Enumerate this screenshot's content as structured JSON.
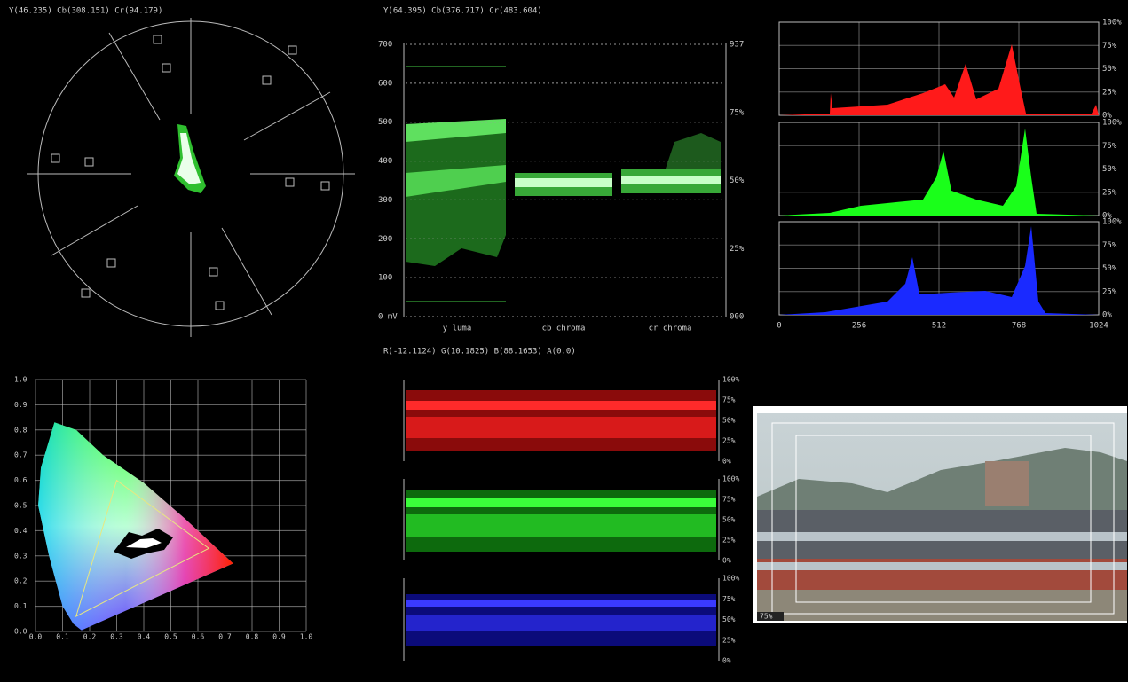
{
  "vectorscope": {
    "readout": "Y(46.235) Cb(308.151) Cr(94.179)"
  },
  "waveform": {
    "readout": "Y(64.395) Cb(376.717) Cr(483.604)",
    "left_ticks": [
      "700",
      "600",
      "500",
      "400",
      "300",
      "200",
      "100",
      "0 mV"
    ],
    "right_ticks": [
      "937",
      "75%",
      "50%",
      "25%",
      "000"
    ],
    "channels": [
      "y luma",
      "cb chroma",
      "cr chroma"
    ]
  },
  "histogram": {
    "x_ticks": [
      "0",
      "256",
      "512",
      "768",
      "1024"
    ],
    "y_ticks": [
      "100%",
      "75%",
      "50%",
      "25%",
      "0%"
    ]
  },
  "cie": {
    "x_ticks": [
      "0.0",
      "0.1",
      "0.2",
      "0.3",
      "0.4",
      "0.5",
      "0.6",
      "0.7",
      "0.8",
      "0.9",
      "1.0"
    ],
    "y_ticks": [
      "0.0",
      "0.1",
      "0.2",
      "0.3",
      "0.4",
      "0.5",
      "0.6",
      "0.7",
      "0.8",
      "0.9",
      "1.0"
    ]
  },
  "parade": {
    "readout": "R(-12.1124) G(10.1825) B(88.1653) A(0.0)",
    "y_ticks": [
      "100%",
      "75%",
      "50%",
      "25%",
      "0%"
    ]
  },
  "preview": {
    "label": "75%"
  }
}
